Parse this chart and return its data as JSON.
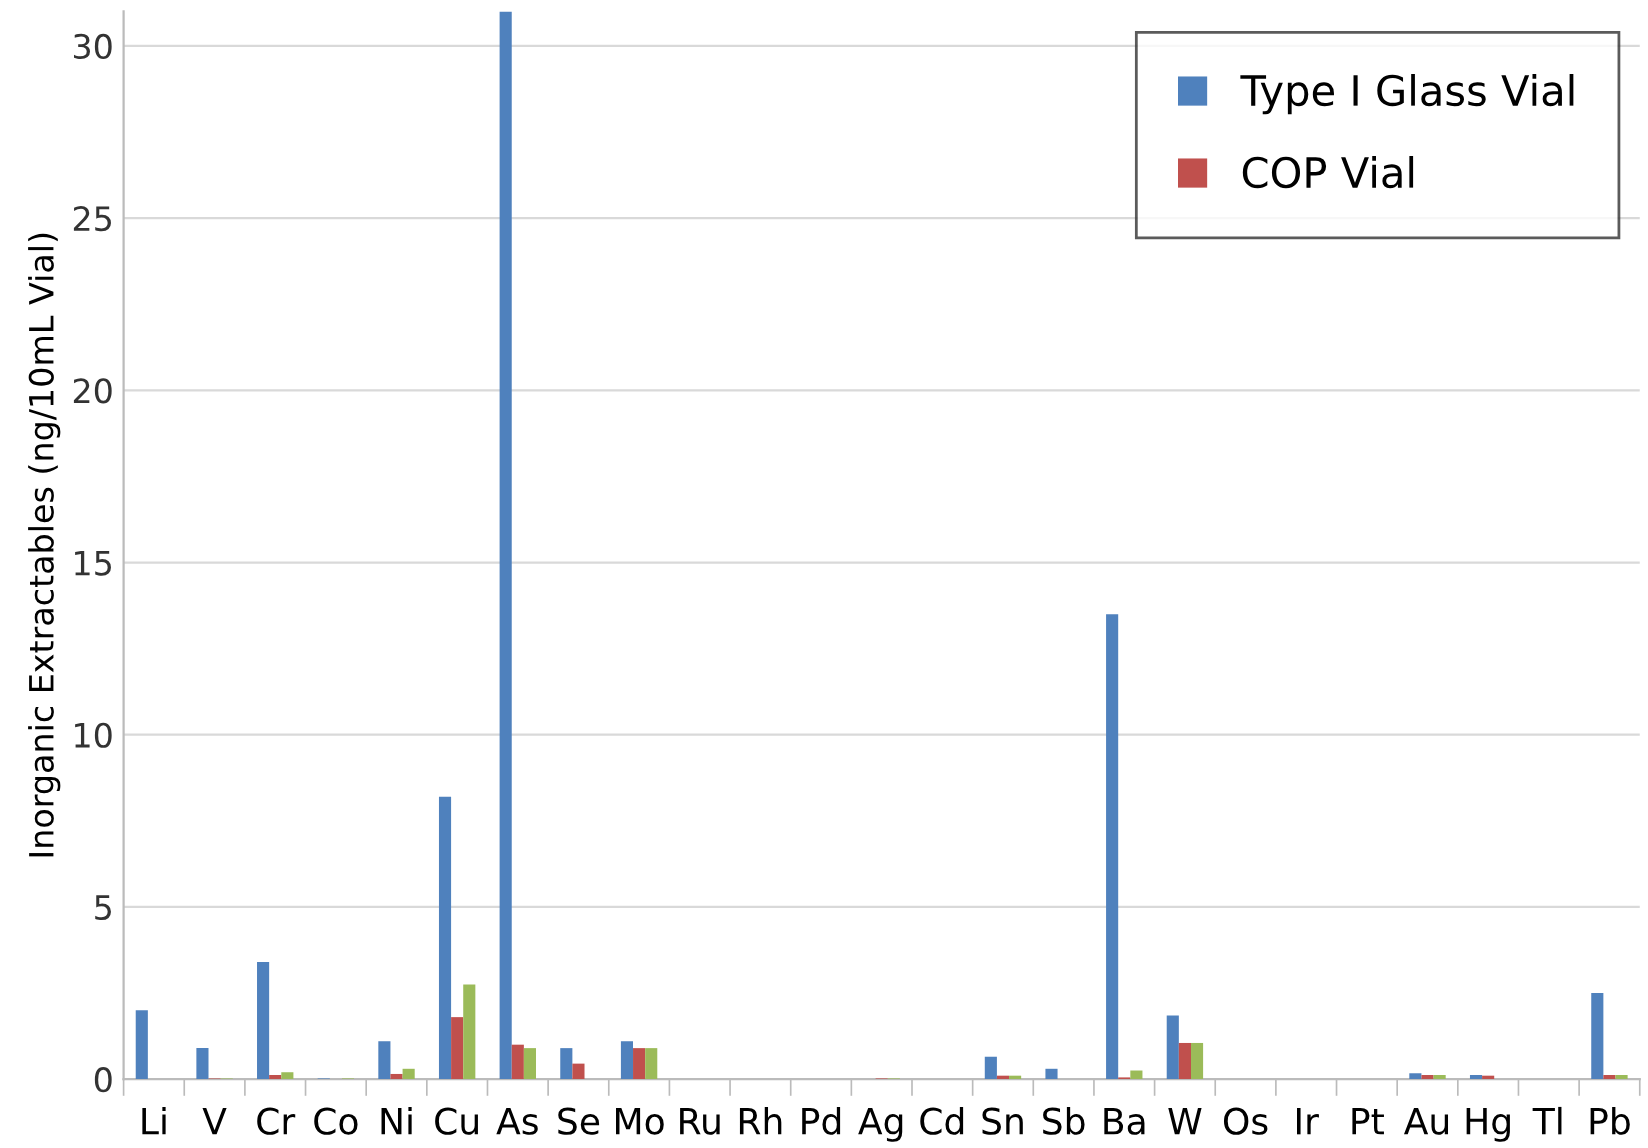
{
  "chart_data": {
    "type": "bar",
    "ylabel": "Inorganic Extractables (ng/10mL Vial)",
    "categories": [
      "Li",
      "V",
      "Cr",
      "Co",
      "Ni",
      "Cu",
      "As",
      "Se",
      "Mo",
      "Ru",
      "Rh",
      "Pd",
      "Ag",
      "Cd",
      "Sn",
      "Sb",
      "Ba",
      "W",
      "Os",
      "Ir",
      "Pt",
      "Au",
      "Hg",
      "Tl",
      "Pb"
    ],
    "series": [
      {
        "name": "Type Ⅰ Glass Vial",
        "color": "#4f81bd",
        "values": [
          2.0,
          0.9,
          3.4,
          0.02,
          1.1,
          8.2,
          31,
          0.9,
          1.1,
          0,
          0,
          0,
          0,
          0,
          0.65,
          0.3,
          13.5,
          1.85,
          0,
          0,
          0,
          0.17,
          0.12,
          0,
          2.5
        ]
      },
      {
        "name": "COP Vial",
        "color": "#c0504d",
        "values": [
          0,
          0.02,
          0.12,
          0,
          0.15,
          1.8,
          1.0,
          0.45,
          0.9,
          0,
          0,
          0,
          0.02,
          0,
          0.1,
          0,
          0.05,
          1.05,
          0,
          0,
          0,
          0.12,
          0.1,
          0,
          0.12
        ]
      },
      {
        "color": "#9bbb59",
        "values": [
          0,
          0.02,
          0.2,
          0.02,
          0.3,
          2.75,
          0.9,
          0,
          0.9,
          0,
          0,
          0,
          0.02,
          0,
          0.1,
          0,
          0.25,
          1.05,
          0,
          0,
          0,
          0.12,
          0,
          0,
          0.12
        ]
      }
    ],
    "ylim": [
      0,
      31
    ],
    "yticks": [
      0,
      5,
      10,
      15,
      20,
      25,
      30
    ],
    "grid": "y",
    "legend": "top right"
  }
}
